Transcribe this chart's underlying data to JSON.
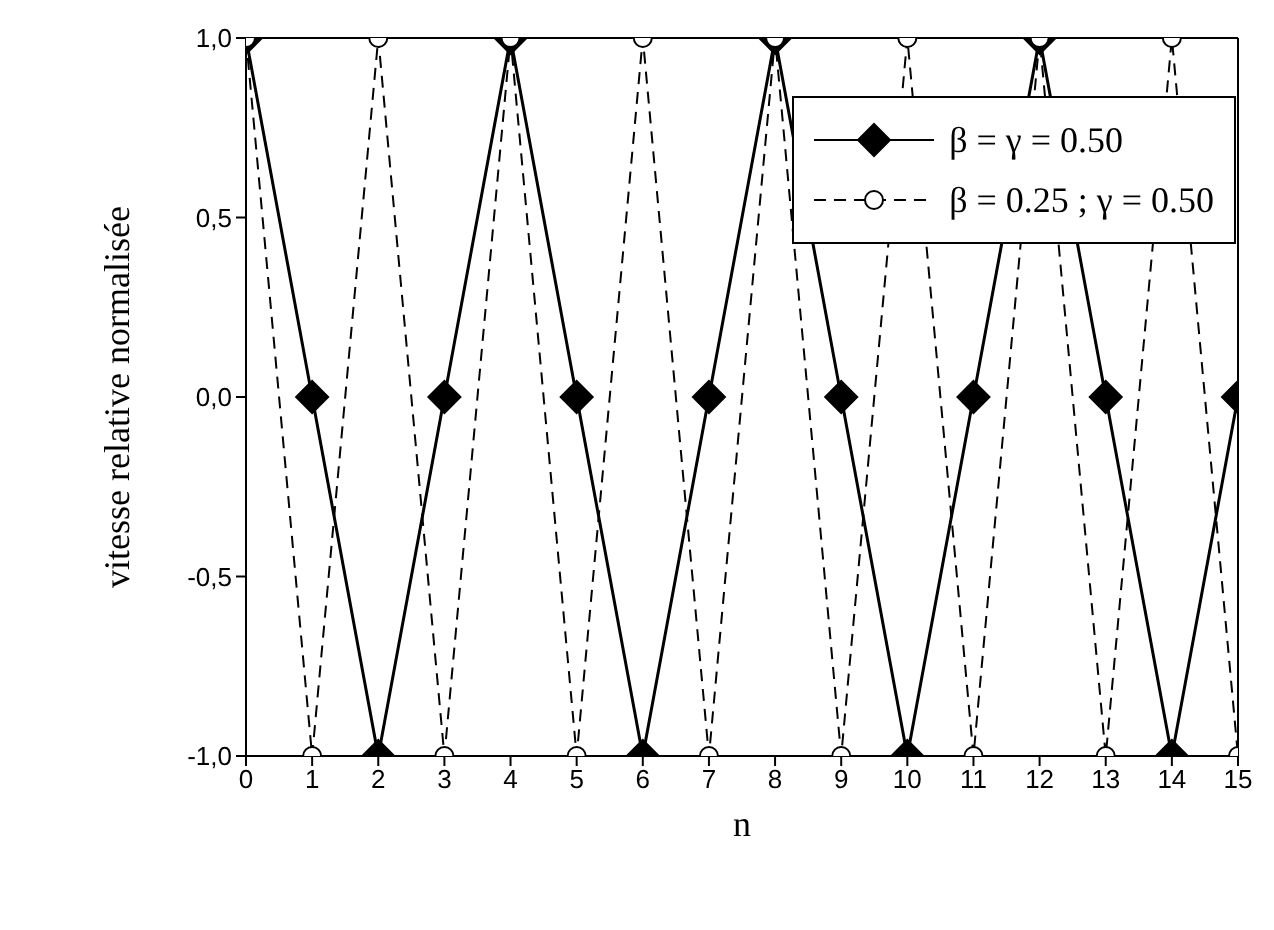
{
  "chart_data": {
    "type": "line",
    "xlabel": "n",
    "ylabel": "vitesse relative normalisée",
    "x": [
      0,
      1,
      2,
      3,
      4,
      5,
      6,
      7,
      8,
      9,
      10,
      11,
      12,
      13,
      14,
      15
    ],
    "xlim": [
      0,
      15
    ],
    "xticks": [
      0,
      1,
      2,
      3,
      4,
      5,
      6,
      7,
      8,
      9,
      10,
      11,
      12,
      13,
      14,
      15
    ],
    "ylim": [
      -1,
      1
    ],
    "yticks": [
      {
        "value": -1,
        "label": "-1,0"
      },
      {
        "value": -0.5,
        "label": "-0,5"
      },
      {
        "value": 0,
        "label": "0,0"
      },
      {
        "value": 0.5,
        "label": "0,5"
      },
      {
        "value": 1,
        "label": "1,0"
      }
    ],
    "legend": "top right",
    "series": [
      {
        "name": "β = γ = 0.50",
        "color": "#000000",
        "marker": "diamond",
        "line_style": "solid",
        "values": [
          1,
          0,
          -1,
          0,
          1,
          0,
          -1,
          0,
          1,
          0,
          -1,
          0,
          1,
          0,
          -1,
          0
        ]
      },
      {
        "name": "β = 0.25 ; γ = 0.50",
        "color": "#000000",
        "marker": "circle",
        "line_style": "dashed",
        "values": [
          1,
          -1,
          1,
          -1,
          1,
          -1,
          1,
          -1,
          1,
          -1,
          1,
          -1,
          1,
          -1,
          1,
          -1
        ]
      }
    ]
  }
}
